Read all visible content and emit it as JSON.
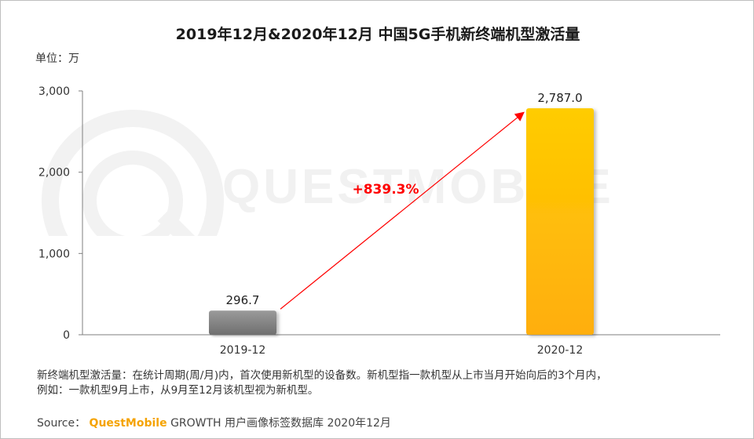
{
  "title": "2019年12月&2020年12月 中国5G手机新终端机型激活量",
  "unit_label": "单位：万",
  "watermark": {
    "logo_text": "QUESTMOBILE"
  },
  "chart_data": {
    "type": "bar",
    "categories": [
      "2019-12",
      "2020-12"
    ],
    "values": [
      296.7,
      2787.0
    ],
    "value_labels": [
      "296.7",
      "2,787.0"
    ],
    "ylim": [
      0,
      3000
    ],
    "yticks": [
      0,
      1000,
      2000,
      3000
    ],
    "ytick_labels": [
      "0",
      "1,000",
      "2,000",
      "3,000"
    ],
    "grid": false,
    "growth_annotation": "+839.3%",
    "colors": {
      "bar_2019": "#8c8c8c",
      "bar_2020": "#ffc000",
      "arrow": "#ff0000"
    }
  },
  "notes": [
    "新终端机型激活量：在统计周期(周/月)内，首次使用新机型的设备数。新机型指一款机型从上市当月开始向后的3个月内，",
    "例如：一款机型9月上市，从9月至12月该机型视为新机型。"
  ],
  "source": {
    "prefix": "Source：",
    "brand": "QuestMobile",
    "suffix": "GROWTH 用户画像标签数据库  2020年12月"
  }
}
